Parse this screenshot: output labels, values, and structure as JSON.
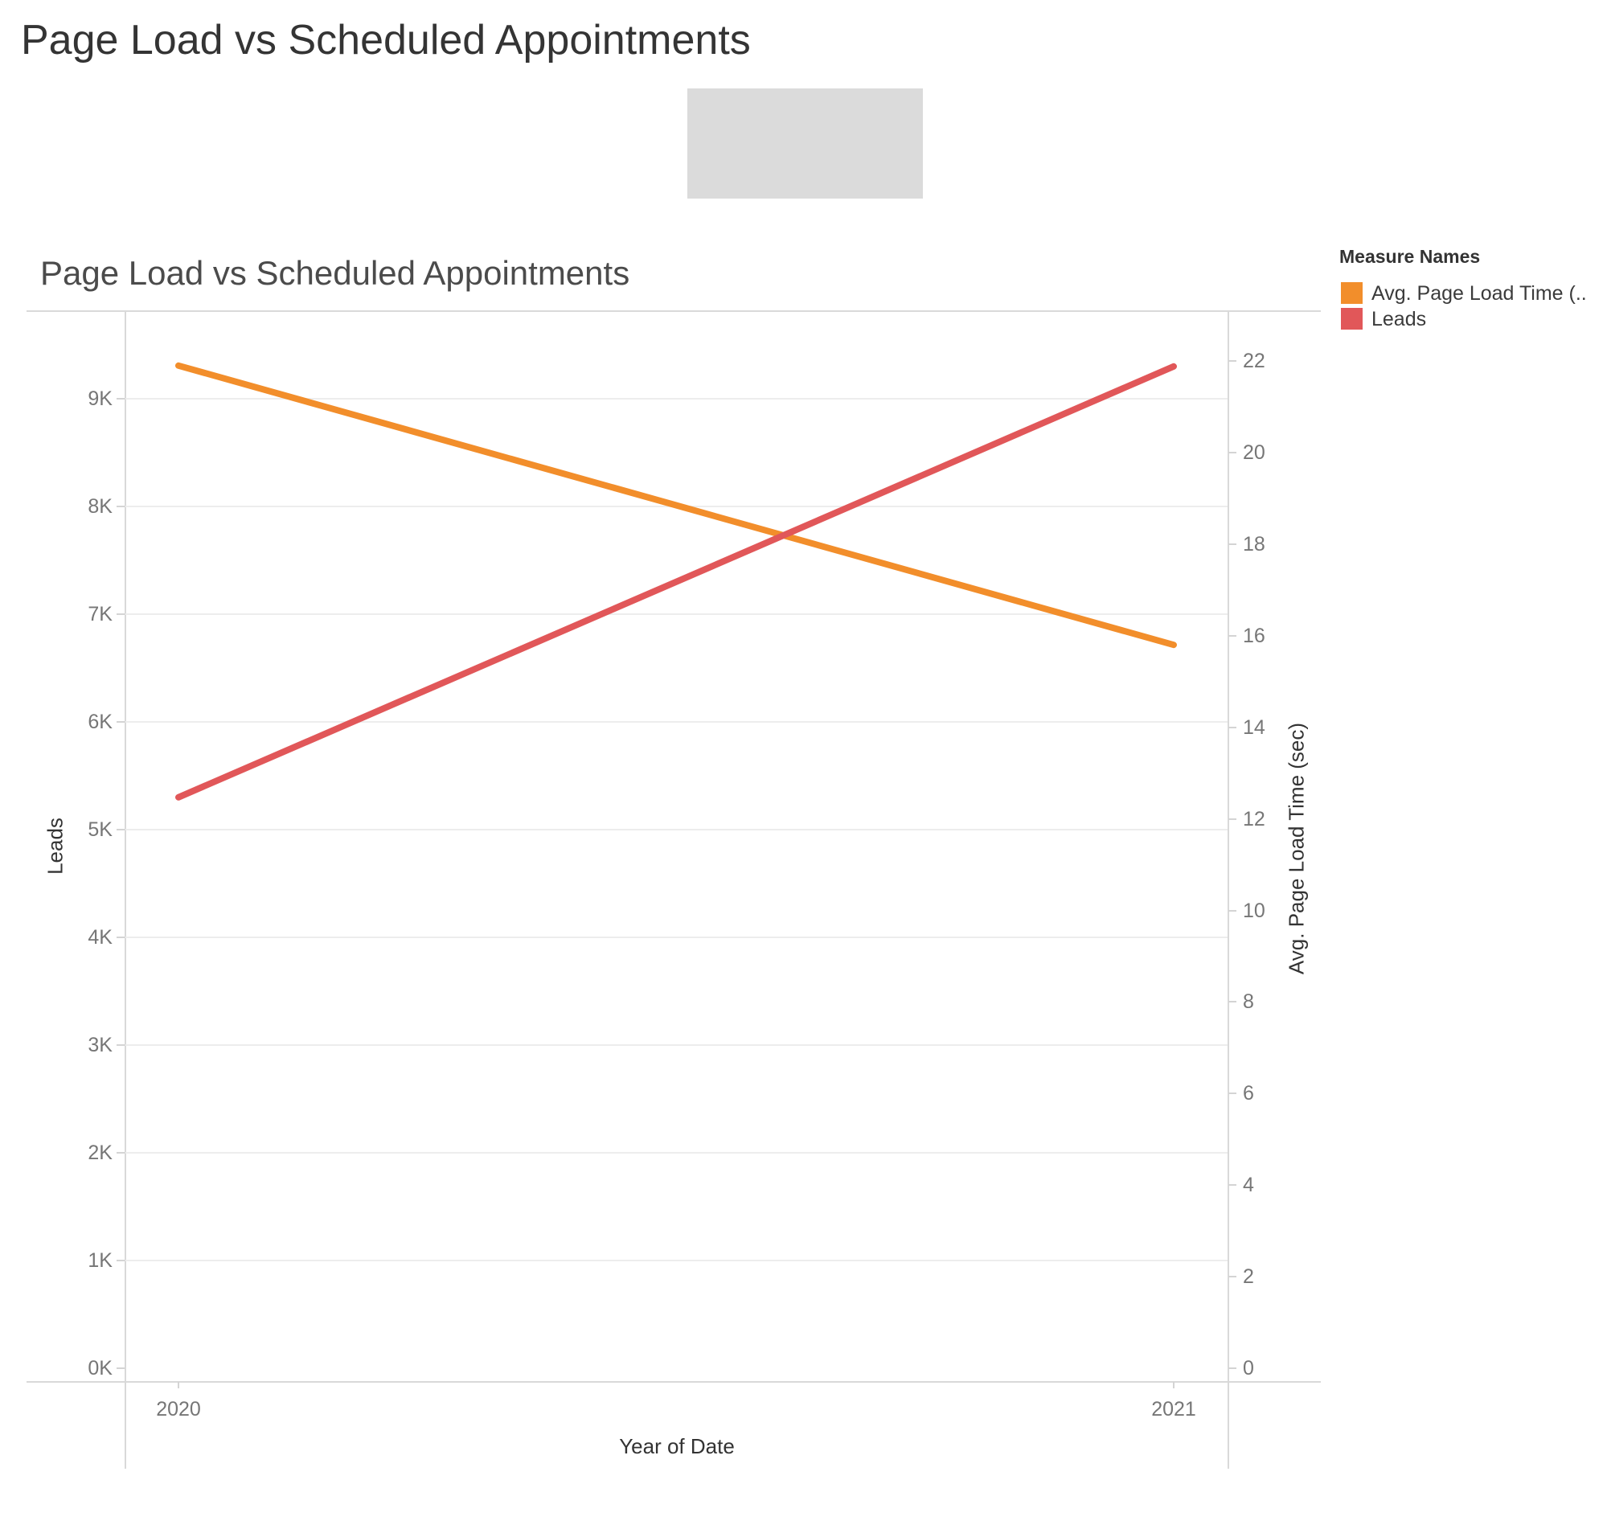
{
  "page": {
    "title": "Page Load vs Scheduled Appointments"
  },
  "chart": {
    "title": "Page Load vs Scheduled Appointments",
    "x_axis": {
      "title": "Year of Date",
      "ticks": [
        "2020",
        "2021"
      ]
    },
    "left_axis": {
      "title": "Leads",
      "ticks": [
        "0K",
        "1K",
        "2K",
        "3K",
        "4K",
        "5K",
        "6K",
        "7K",
        "8K",
        "9K"
      ]
    },
    "right_axis": {
      "title": "Avg. Page Load Time (sec)",
      "ticks": [
        "0",
        "2",
        "4",
        "6",
        "8",
        "10",
        "12",
        "14",
        "16",
        "18",
        "20",
        "22"
      ]
    },
    "legend": {
      "title": "Measure Names",
      "items": [
        {
          "label": "Avg. Page Load Time (..",
          "color": "#F28E2B"
        },
        {
          "label": "Leads",
          "color": "#E15759"
        }
      ]
    }
  },
  "chart_data": {
    "type": "line",
    "title": "Page Load vs Scheduled Appointments",
    "x": [
      2020,
      2021
    ],
    "xlabel": "Year of Date",
    "series": [
      {
        "name": "Avg. Page Load Time (sec)",
        "axis": "right",
        "color": "#F28E2B",
        "values": [
          21.9,
          15.8
        ]
      },
      {
        "name": "Leads",
        "axis": "left",
        "color": "#E15759",
        "values": [
          5300,
          9300
        ]
      }
    ],
    "left_axis": {
      "label": "Leads",
      "range": [
        0,
        9810
      ],
      "tick_step": 1000
    },
    "right_axis": {
      "label": "Avg. Page Load Time (sec)",
      "range": [
        0,
        23.1
      ],
      "tick_step": 2
    },
    "grid": "horizontal",
    "legend_position": "top-right"
  }
}
